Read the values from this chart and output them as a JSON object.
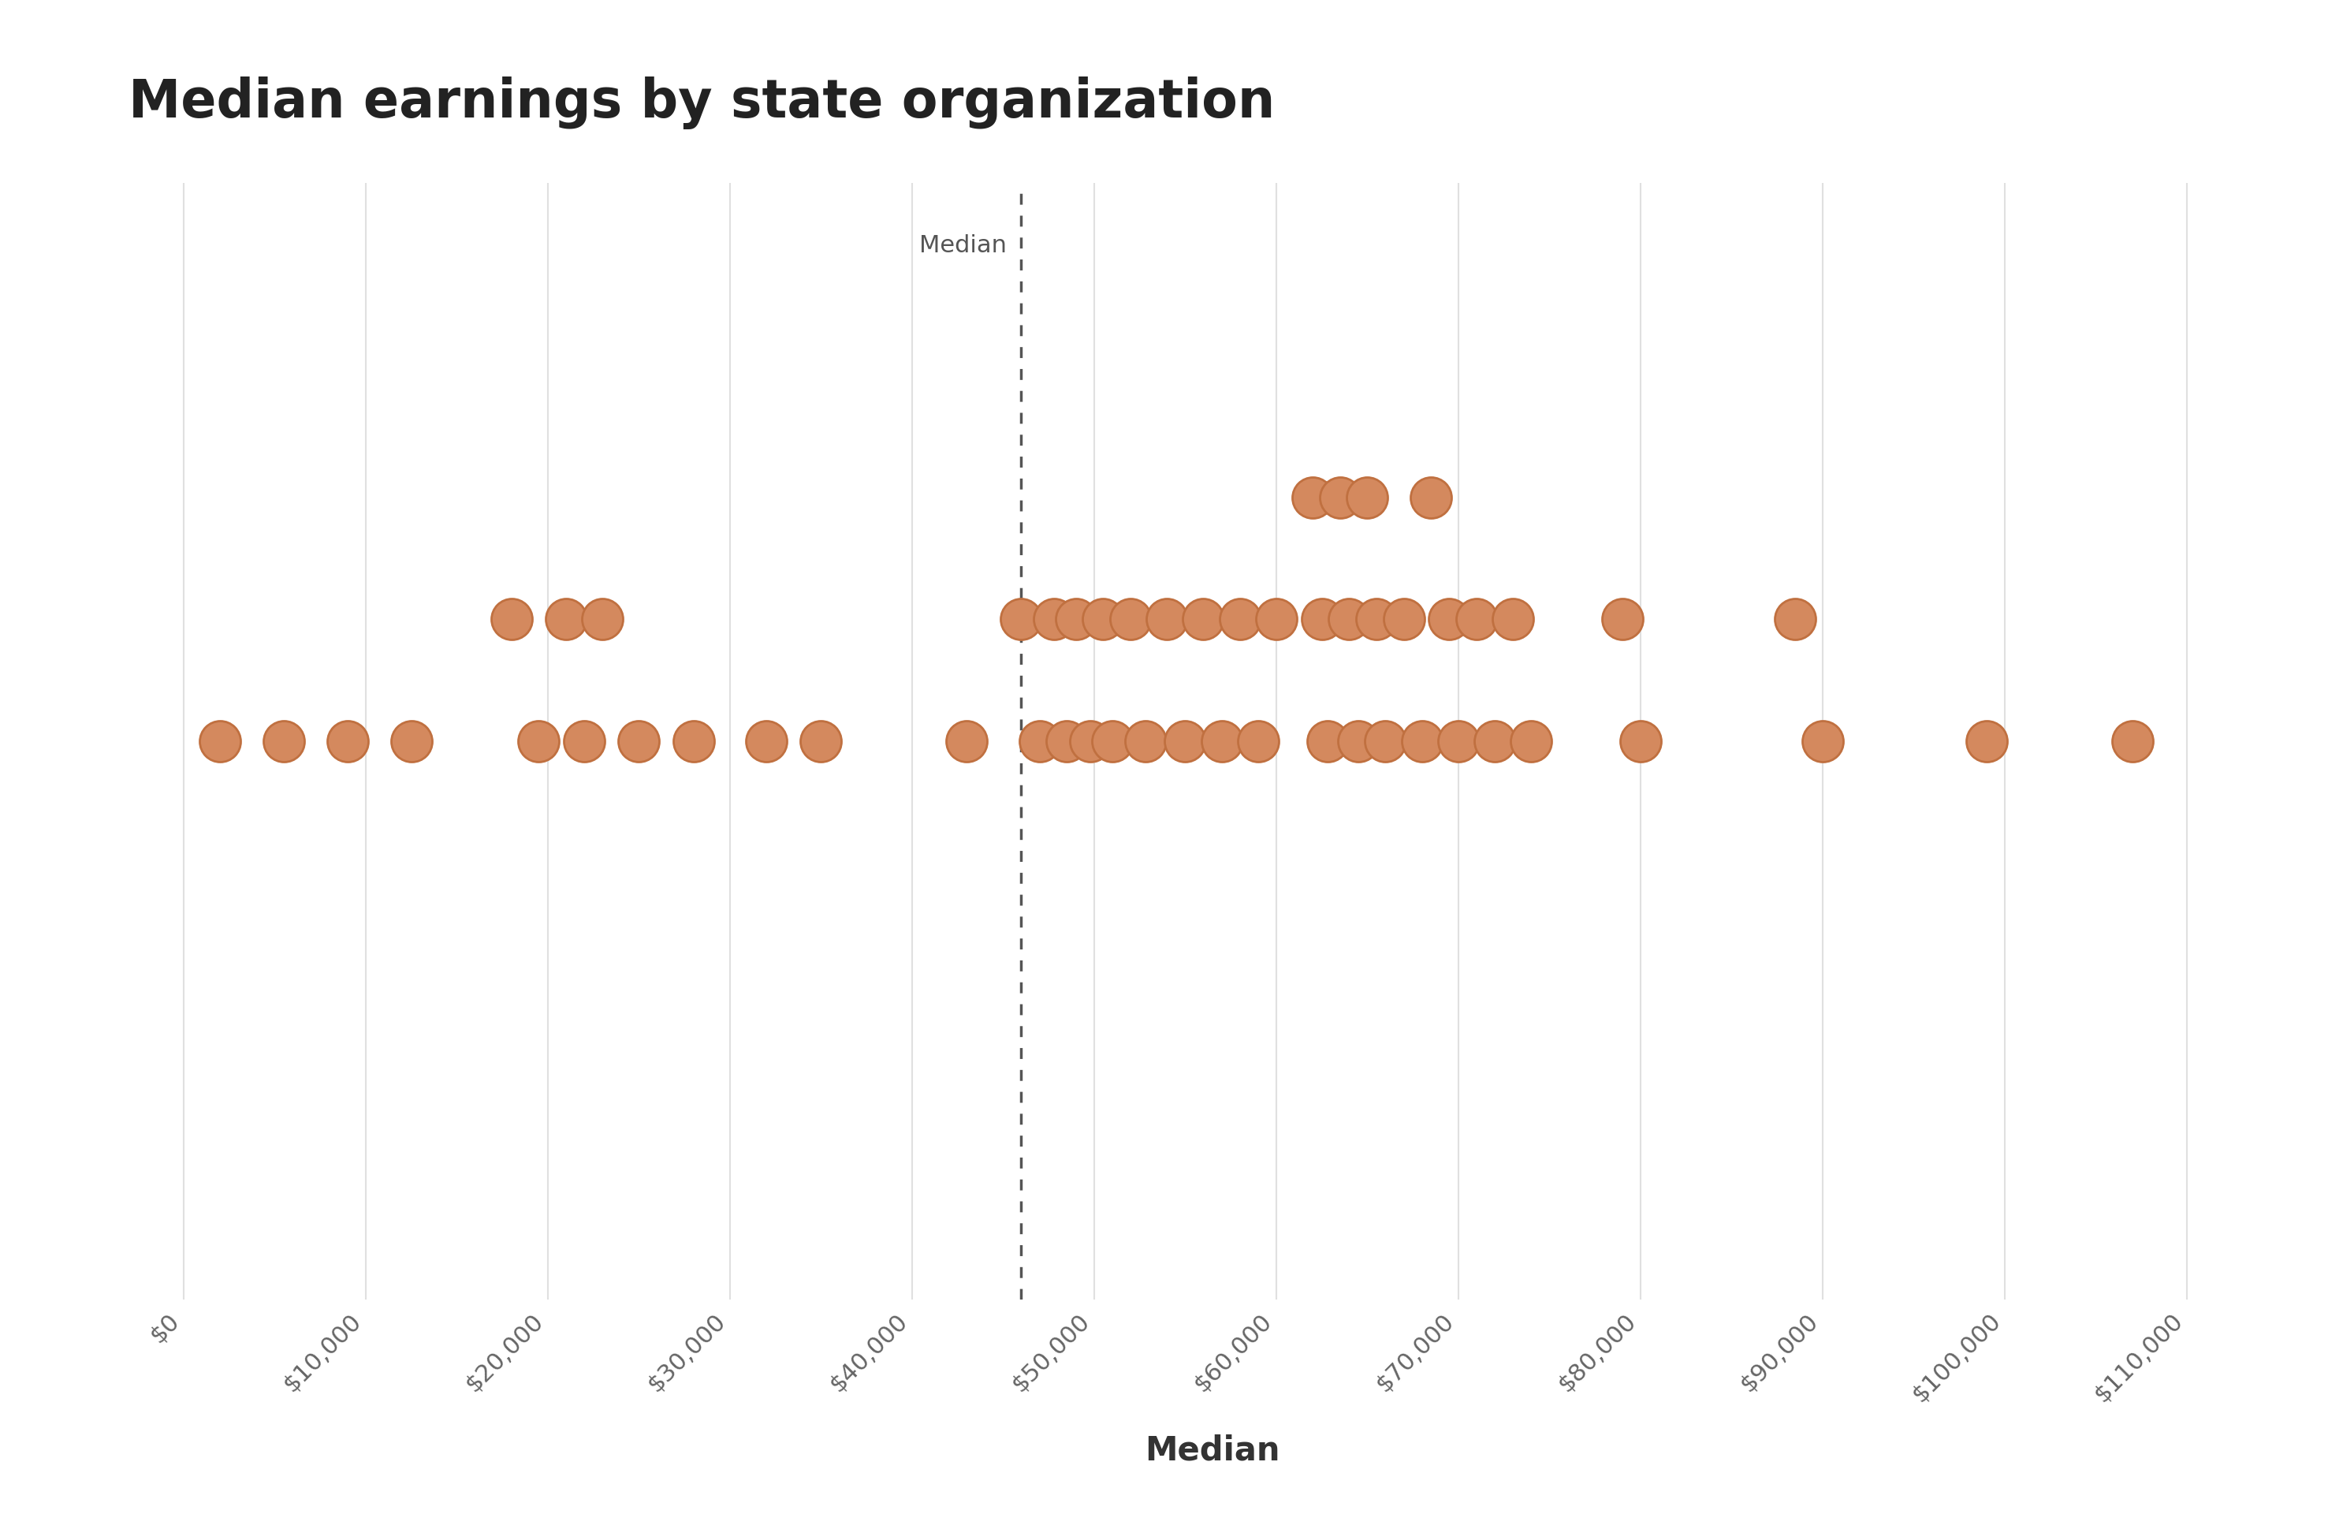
{
  "title": "Median earnings by state organization",
  "xlabel": "Median",
  "median_line": 46000,
  "median_label": "Median",
  "dot_color": "#d4895e",
  "dot_edge_color": "#c07040",
  "background_color": "#ffffff",
  "gridline_color": "#e0e0e0",
  "xlim": [
    -3000,
    116000
  ],
  "ylim": [
    -0.55,
    0.55
  ],
  "xmin": 0,
  "xmax": 110000,
  "xtick_step": 10000,
  "dot_size": 1400,
  "title_fontsize": 48,
  "xlabel_fontsize": 30,
  "tick_fontsize": 22,
  "median_label_fontsize": 22,
  "dot_xy": [
    [
      2000,
      0
    ],
    [
      5500,
      0
    ],
    [
      9000,
      0
    ],
    [
      12500,
      0
    ],
    [
      18000,
      0.12
    ],
    [
      19500,
      0
    ],
    [
      21000,
      0.12
    ],
    [
      22000,
      0
    ],
    [
      23000,
      0.12
    ],
    [
      25000,
      0
    ],
    [
      28000,
      0
    ],
    [
      32000,
      0
    ],
    [
      35000,
      0
    ],
    [
      43000,
      0
    ],
    [
      46000,
      0.12
    ],
    [
      47000,
      0
    ],
    [
      47800,
      0.12
    ],
    [
      48500,
      0
    ],
    [
      49000,
      0.12
    ],
    [
      49800,
      0
    ],
    [
      50500,
      0.12
    ],
    [
      51000,
      0
    ],
    [
      52000,
      0.12
    ],
    [
      52800,
      0
    ],
    [
      54000,
      0.12
    ],
    [
      55000,
      0
    ],
    [
      56000,
      0.12
    ],
    [
      57000,
      0
    ],
    [
      58000,
      0.12
    ],
    [
      59000,
      0
    ],
    [
      60000,
      0.12
    ],
    [
      62000,
      0.24
    ],
    [
      62500,
      0.12
    ],
    [
      62800,
      0
    ],
    [
      63500,
      0.24
    ],
    [
      64000,
      0.12
    ],
    [
      64500,
      0
    ],
    [
      65000,
      0.24
    ],
    [
      65500,
      0.12
    ],
    [
      66000,
      0
    ],
    [
      67000,
      0.12
    ],
    [
      68000,
      0
    ],
    [
      68500,
      0.24
    ],
    [
      69500,
      0.12
    ],
    [
      70000,
      0
    ],
    [
      71000,
      0.12
    ],
    [
      72000,
      0
    ],
    [
      73000,
      0.12
    ],
    [
      74000,
      0
    ],
    [
      79000,
      0.12
    ],
    [
      80000,
      0
    ],
    [
      88500,
      0.12
    ],
    [
      90000,
      0
    ],
    [
      99000,
      0
    ],
    [
      107000,
      0
    ]
  ]
}
